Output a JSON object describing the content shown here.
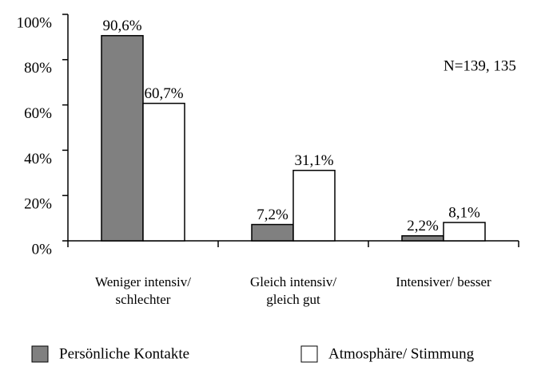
{
  "chart_data": {
    "type": "bar",
    "categories": [
      "Weniger intensiv/ schlechter",
      "Gleich intensiv/ gleich gut",
      "Intensiver/ besser"
    ],
    "series": [
      {
        "name": "Persönliche Kontakte",
        "color": "#808080",
        "values": [
          90.6,
          7.2,
          2.2
        ],
        "value_labels": [
          "90,6%",
          "7,2%",
          "2,2%"
        ]
      },
      {
        "name": "Atmosphäre/ Stimmung",
        "color": "#ffffff",
        "values": [
          60.7,
          31.1,
          8.1
        ],
        "value_labels": [
          "60,7%",
          "31,1%",
          "8,1%"
        ]
      }
    ],
    "annotation": "N=139, 135",
    "ylim": [
      0,
      100
    ],
    "yticks": [
      {
        "value": 0,
        "label": "0%"
      },
      {
        "value": 20,
        "label": "20%"
      },
      {
        "value": 40,
        "label": "40%"
      },
      {
        "value": 60,
        "label": "60%"
      },
      {
        "value": 80,
        "label": "80%"
      },
      {
        "value": 100,
        "label": "100%"
      }
    ],
    "legend": "bottom"
  }
}
